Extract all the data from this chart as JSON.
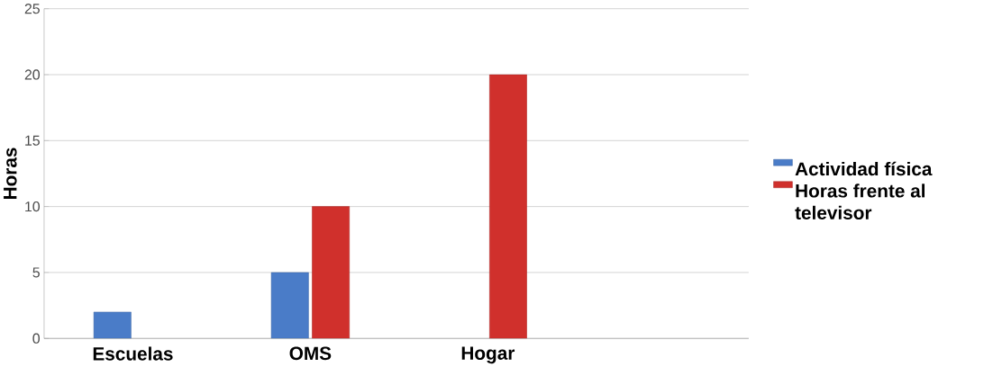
{
  "chart_data": {
    "type": "bar",
    "ylabel": "Horas",
    "categories": [
      "Escuelas",
      "OMS",
      "Hogar"
    ],
    "series": [
      {
        "name": "Actividad física",
        "color": "#4a7cc8",
        "values": [
          2,
          5,
          null
        ]
      },
      {
        "name": "Horas frente al televisor",
        "color": "#d0302c",
        "values": [
          null,
          10,
          20
        ]
      }
    ],
    "ylim": [
      0,
      25
    ],
    "yticks": [
      0,
      5,
      10,
      15,
      20,
      25
    ],
    "grid": "y",
    "legend": "right"
  }
}
